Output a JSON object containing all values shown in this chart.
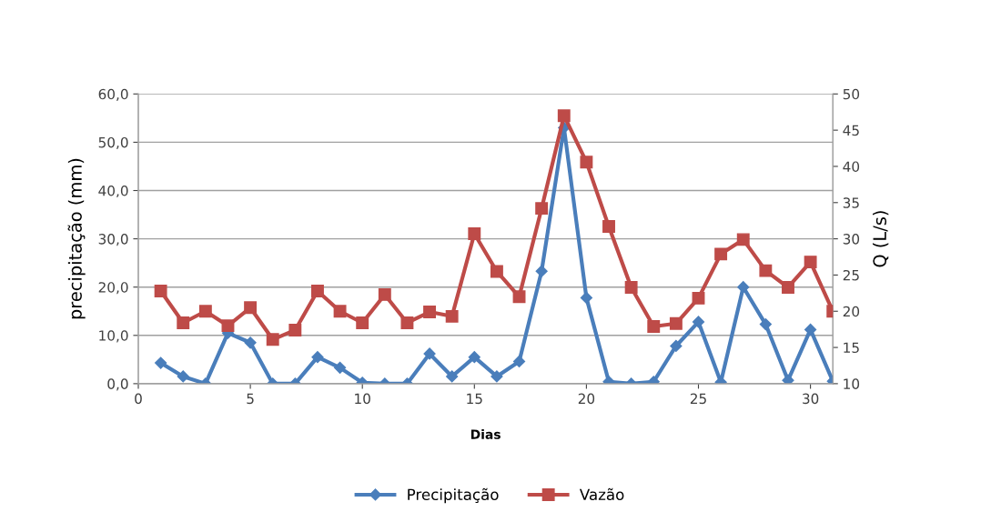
{
  "chart_data": {
    "type": "line",
    "xlabel": "Dias",
    "ylabel": "precipitação (mm)",
    "y2label": "Q (L/s)",
    "x": [
      1,
      2,
      3,
      4,
      5,
      6,
      7,
      8,
      9,
      10,
      11,
      12,
      13,
      14,
      15,
      16,
      17,
      18,
      19,
      20,
      21,
      22,
      23,
      24,
      25,
      26,
      27,
      28,
      29,
      30,
      31
    ],
    "series": [
      {
        "name": "Precipitação",
        "color": "#4a7ebb",
        "marker": "diamond",
        "values": [
          4.3,
          1.5,
          0,
          10.5,
          8.5,
          0,
          0,
          5.5,
          3.3,
          0.2,
          0,
          0,
          6.2,
          1.5,
          5.5,
          1.5,
          4.6,
          23.3,
          53,
          17.8,
          0.4,
          0,
          0.4,
          7.8,
          12.8,
          0.3,
          20,
          12.3,
          0.7,
          11.2,
          0.5
        ]
      },
      {
        "name": "Vazão",
        "color": "#be4b48",
        "marker": "square",
        "axis": "y2",
        "values": [
          22.8,
          18.4,
          20,
          18,
          20.5,
          16.1,
          17.4,
          22.8,
          20,
          18.4,
          22.3,
          18.4,
          19.9,
          19.3,
          30.7,
          25.5,
          22,
          34.2,
          47,
          40.6,
          31.7,
          23.3,
          17.9,
          18.3,
          21.8,
          27.9,
          29.9,
          25.6,
          23.3,
          26.8,
          20
        ]
      }
    ],
    "xlim": [
      0,
      31
    ],
    "xticks": [
      0,
      5,
      10,
      15,
      20,
      25,
      30
    ],
    "ylim": [
      0,
      60
    ],
    "yticks": [
      {
        "value": 0,
        "label": "0,0"
      },
      {
        "value": 10,
        "label": "10,0"
      },
      {
        "value": 20,
        "label": "20,0"
      },
      {
        "value": 30,
        "label": "30,0"
      },
      {
        "value": 40,
        "label": "40,0"
      },
      {
        "value": 50,
        "label": "50,0"
      },
      {
        "value": 60,
        "label": "60,0"
      }
    ],
    "y2lim": [
      10,
      50
    ],
    "y2ticks": [
      10,
      15,
      20,
      25,
      30,
      35,
      40,
      45,
      50
    ],
    "grid": "y",
    "legend": "bottom",
    "line_style": "solid"
  }
}
